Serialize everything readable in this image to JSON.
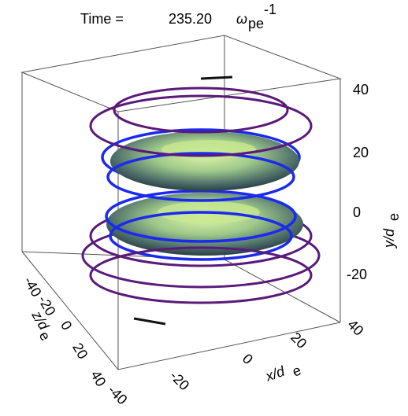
{
  "title": {
    "label": "Time =",
    "value": "235.20",
    "symbol": "ω",
    "subscript": "pe",
    "superscript": "-1"
  },
  "y_axis": {
    "label": "y/d",
    "label_subscript": "e",
    "ticks": [
      "40",
      "20",
      "0",
      "-20"
    ]
  },
  "x_axis": {
    "label": "x/d",
    "label_subscript": "e",
    "ticks": [
      "-40",
      "-20",
      "0",
      "20",
      "40"
    ]
  },
  "z_axis": {
    "label": "z/d",
    "label_subscript": "e",
    "ticks": [
      "-40",
      "-20",
      "0",
      "20",
      "40"
    ]
  }
}
